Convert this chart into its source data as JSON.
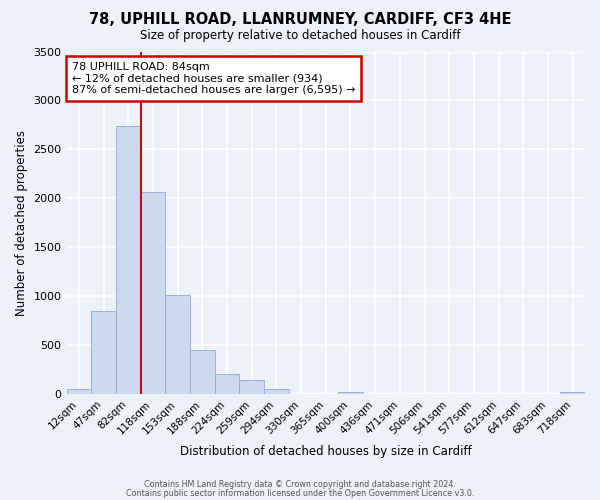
{
  "title1": "78, UPHILL ROAD, LLANRUMNEY, CARDIFF, CF3 4HE",
  "title2": "Size of property relative to detached houses in Cardiff",
  "xlabel": "Distribution of detached houses by size in Cardiff",
  "ylabel": "Number of detached properties",
  "bar_color": "#ccd9ee",
  "bar_edge_color": "#8baad0",
  "background_color": "#edf1f8",
  "grid_color": "#ffffff",
  "categories": [
    "12sqm",
    "47sqm",
    "82sqm",
    "118sqm",
    "153sqm",
    "188sqm",
    "224sqm",
    "259sqm",
    "294sqm",
    "330sqm",
    "365sqm",
    "400sqm",
    "436sqm",
    "471sqm",
    "506sqm",
    "541sqm",
    "577sqm",
    "612sqm",
    "647sqm",
    "683sqm",
    "718sqm"
  ],
  "values": [
    55,
    850,
    2740,
    2070,
    1010,
    450,
    205,
    145,
    55,
    0,
    0,
    30,
    0,
    0,
    0,
    0,
    0,
    0,
    0,
    0,
    20
  ],
  "ylim": [
    0,
    3500
  ],
  "yticks": [
    0,
    500,
    1000,
    1500,
    2000,
    2500,
    3000,
    3500
  ],
  "vline_index": 2,
  "annotation_title": "78 UPHILL ROAD: 84sqm",
  "annotation_line1": "← 12% of detached houses are smaller (934)",
  "annotation_line2": "87% of semi-detached houses are larger (6,595) →",
  "annotation_box_color": "#ffffff",
  "annotation_box_edge": "#cc0000",
  "vline_color": "#cc0000",
  "footer1": "Contains HM Land Registry data © Crown copyright and database right 2024.",
  "footer2": "Contains public sector information licensed under the Open Government Licence v3.0."
}
